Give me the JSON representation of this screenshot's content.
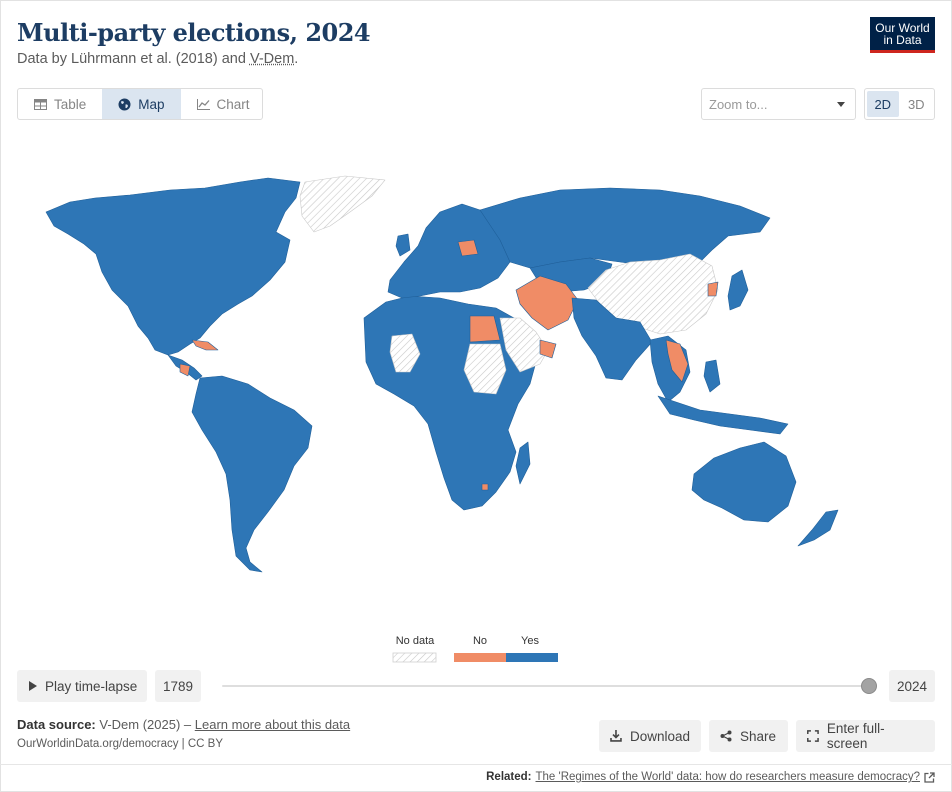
{
  "header": {
    "title": "Multi-party elections, 2024",
    "subtitle_prefix": "Data by Lührmann et al. (2018) and ",
    "subtitle_link": "V-Dem",
    "subtitle_suffix": "."
  },
  "logo": {
    "line1": "Our World",
    "line2": "in Data"
  },
  "tabs": [
    {
      "label": "Table",
      "icon": "table-icon",
      "active": false
    },
    {
      "label": "Map",
      "icon": "globe-icon",
      "active": true
    },
    {
      "label": "Chart",
      "icon": "line-chart-icon",
      "active": false
    }
  ],
  "zoom": {
    "placeholder": "Zoom to..."
  },
  "projection": {
    "option_2d": "2D",
    "option_3d": "3D",
    "selected": "2D"
  },
  "legend": {
    "no_data": "No data",
    "no": "No",
    "yes": "Yes",
    "colors": {
      "yes": "#2e76b6",
      "no": "#f08c66",
      "no_data_stroke": "#c9c9c9"
    }
  },
  "timeline": {
    "play_label": "Play time-lapse",
    "start_year": "1789",
    "end_year": "2024",
    "position": 1.0
  },
  "footer": {
    "source_label": "Data source:",
    "source_value": "V-Dem (2025) – ",
    "learn_more": "Learn more about this data",
    "credit": "OurWorldinData.org/democracy | CC BY",
    "download": "Download",
    "share": "Share",
    "fullscreen": "Enter full-screen",
    "related_label": "Related:",
    "related_link": "The 'Regimes of the World' data: how do researchers measure democracy?"
  }
}
